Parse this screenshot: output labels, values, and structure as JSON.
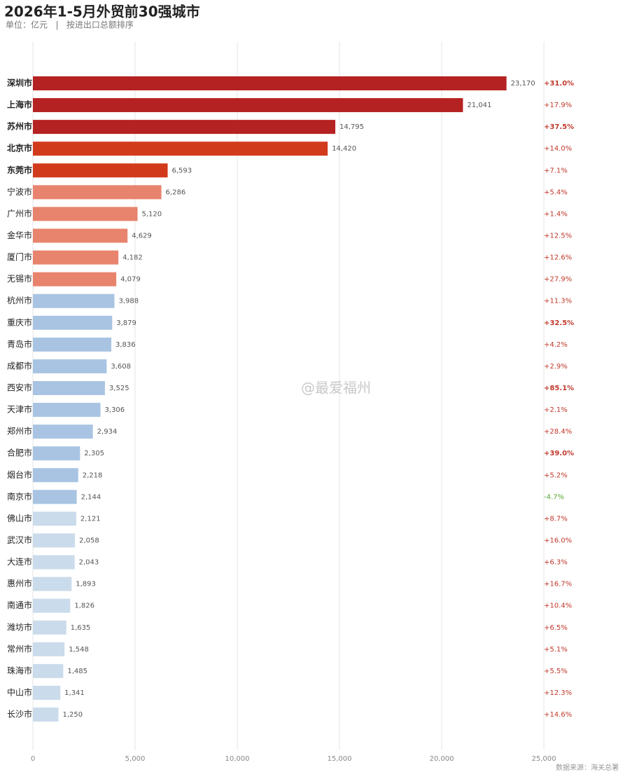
{
  "chart_data": {
    "type": "hbar",
    "title": "2026年1-5月外贸前30强城市",
    "subtitle": "单位：亿元   |   按进出口总额排序",
    "source": "数据来源：海关总署",
    "watermark": "@最爱福州",
    "categories": [
      "深圳市",
      "上海市",
      "苏州市",
      "北京市",
      "东莞市",
      "宁波市",
      "广州市",
      "金华市",
      "厦门市",
      "无锡市",
      "杭州市",
      "重庆市",
      "青岛市",
      "成都市",
      "西安市",
      "天津市",
      "郑州市",
      "合肥市",
      "烟台市",
      "南京市",
      "佛山市",
      "武汉市",
      "大连市",
      "惠州市",
      "南通市",
      "潍坊市",
      "常州市",
      "珠海市",
      "中山市",
      "长沙市"
    ],
    "values": [
      23170,
      21041,
      14795,
      14420,
      6593,
      6286,
      5120,
      4629,
      4182,
      4079,
      3988,
      3879,
      3836,
      3608,
      3525,
      3306,
      2934,
      2305,
      2218,
      2144,
      2121,
      2058,
      2043,
      1893,
      1826,
      1635,
      1548,
      1485,
      1341,
      1250
    ],
    "value_labels": [
      "23,170",
      "21,041",
      "14,795",
      "14,420",
      "6,593",
      "6,286",
      "5,120",
      "4,629",
      "4,182",
      "4,079",
      "3,988",
      "3,879",
      "3,836",
      "3,608",
      "3,525",
      "3,306",
      "2,934",
      "2,305",
      "2,218",
      "2,144",
      "2,121",
      "2,058",
      "2,043",
      "1,893",
      "1,826",
      "1,635",
      "1,548",
      "1,485",
      "1,341",
      "1,250"
    ],
    "growth": [
      31.0,
      17.9,
      37.5,
      14.0,
      7.1,
      5.4,
      1.4,
      12.5,
      12.6,
      27.9,
      11.3,
      32.5,
      4.2,
      2.9,
      85.1,
      2.1,
      28.4,
      39.0,
      5.2,
      -4.7,
      8.7,
      16.0,
      6.3,
      16.7,
      10.4,
      6.5,
      5.1,
      5.5,
      12.3,
      14.6
    ],
    "growth_labels": [
      "+31.0%",
      "+17.9%",
      "+37.5%",
      "+14.0%",
      "+7.1%",
      "+5.4%",
      "+1.4%",
      "+12.5%",
      "+12.6%",
      "+27.9%",
      "+11.3%",
      "+32.5%",
      "+4.2%",
      "+2.9%",
      "+85.1%",
      "+2.1%",
      "+28.4%",
      "+39.0%",
      "+5.2%",
      "-4.7%",
      "+8.7%",
      "+16.0%",
      "+6.3%",
      "+16.7%",
      "+10.4%",
      "+6.5%",
      "+5.1%",
      "+5.5%",
      "+12.3%",
      "+14.6%"
    ],
    "colors": [
      "#b52222",
      "#b52222",
      "#b52222",
      "#d13b1c",
      "#d13b1c",
      "#e8836d",
      "#e8836d",
      "#e8836d",
      "#e8836d",
      "#e8836d",
      "#a8c4e2",
      "#a8c4e2",
      "#a8c4e2",
      "#a8c4e2",
      "#a8c4e2",
      "#a8c4e2",
      "#a8c4e2",
      "#a8c4e2",
      "#a8c4e2",
      "#a8c4e2",
      "#cadbeb",
      "#cadbeb",
      "#cadbeb",
      "#cadbeb",
      "#cadbeb",
      "#cadbeb",
      "#cadbeb",
      "#cadbeb",
      "#cadbeb",
      "#cadbeb"
    ],
    "xlim": [
      0,
      25000
    ],
    "xticks": [
      0,
      {
        "value": 5000,
        "label": "5,000"
      },
      {
        "value": 10000,
        "label": "10,000"
      },
      {
        "value": 15000,
        "label": "15,000"
      },
      {
        "value": 20000,
        "label": "20,000"
      },
      {
        "value": 25000,
        "label": "25,000"
      }
    ],
    "grid": true
  }
}
